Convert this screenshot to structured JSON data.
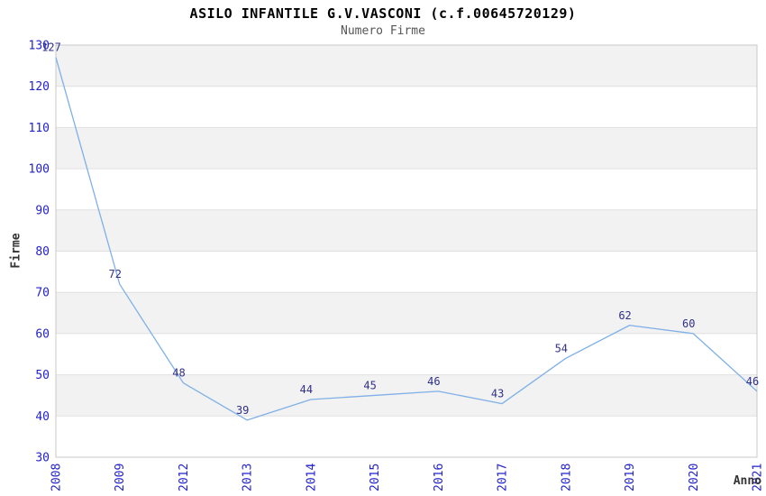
{
  "chart": {
    "title": "ASILO INFANTILE G.V.VASCONI (c.f.00645720129)",
    "subtitle": "Numero Firme",
    "ylabel": "Firme",
    "xlabel": "Anno"
  },
  "chart_data": {
    "type": "line",
    "title": "ASILO INFANTILE G.V.VASCONI (c.f.00645720129)",
    "subtitle": "Numero Firme",
    "xlabel": "Anno",
    "ylabel": "Firme",
    "categories": [
      "2008",
      "2009",
      "2012",
      "2013",
      "2014",
      "2015",
      "2016",
      "2017",
      "2018",
      "2019",
      "2020",
      "2021"
    ],
    "values": [
      127,
      72,
      48,
      39,
      44,
      45,
      46,
      43,
      54,
      62,
      60,
      46
    ],
    "ylim": [
      30,
      130
    ],
    "ytick_step": 10,
    "grid": "horizontal",
    "banded_background": true,
    "markers": "none",
    "legend": "none",
    "data_labels": "on",
    "colors": {
      "line": "#7fb0e6",
      "tick_label": "#2222cc",
      "data_label": "#303088",
      "band": "#f2f2f2",
      "gridline": "#e0e0e0",
      "border": "#c8c8c8",
      "title": "#000000",
      "subtitle": "#555555",
      "axis_title": "#333333"
    }
  }
}
